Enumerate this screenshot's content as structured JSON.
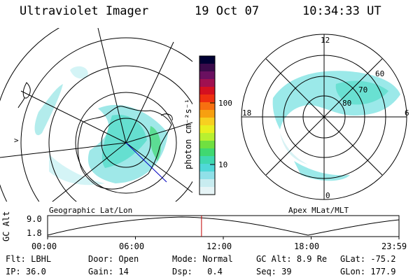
{
  "header": {
    "title": "Ultraviolet Imager",
    "date": "19 Oct 07",
    "time": "10:34:33 UT"
  },
  "left_panel": {
    "caption": "Geographic Lat/Lon",
    "edge_marker": ">"
  },
  "right_panel": {
    "caption": "Apex MLat/MLT",
    "mlt_labels": [
      "12",
      "18",
      "6",
      "0"
    ],
    "lat_labels": [
      "60",
      "70",
      "80"
    ]
  },
  "colorbar": {
    "unit_label": "photon cm⁻²s⁻¹",
    "ticks": [
      {
        "label": "100",
        "value": 100
      },
      {
        "label": "10",
        "value": 10
      }
    ],
    "colors": [
      "#000033",
      "#3a0a4a",
      "#6a1060",
      "#a01050",
      "#d41020",
      "#ee3010",
      "#f77010",
      "#f7a010",
      "#f7d020",
      "#e8f020",
      "#b8f030",
      "#70e040",
      "#40d870",
      "#40d8b0",
      "#50d8d8",
      "#90e0e8",
      "#c8ecf0",
      "#e6f4f6"
    ]
  },
  "timeline": {
    "y_axis_label": "GC Alt",
    "y_ticks": [
      "9.0",
      "1.8"
    ],
    "x_ticks": [
      "00:00",
      "06:00",
      "12:00",
      "18:00",
      "23:59"
    ],
    "current_time_fraction": 0.438,
    "marker_color": "#c00000"
  },
  "info": {
    "row1": [
      {
        "key": "Flt:",
        "value": "LBHL"
      },
      {
        "key": "Door:",
        "value": "Open"
      },
      {
        "key": "Mode:",
        "value": "Normal"
      },
      {
        "key": "GC Alt:",
        "value": "8.9 Re"
      },
      {
        "key": "GLat:",
        "value": "-75.2"
      }
    ],
    "row2": [
      {
        "key": "IP:",
        "value": "36.0"
      },
      {
        "key": "Gain:",
        "value": "14"
      },
      {
        "key": "Dsp:",
        "value": "0.4"
      },
      {
        "key": "Seq:",
        "value": "39"
      },
      {
        "key": "GLon:",
        "value": "177.9"
      }
    ]
  }
}
